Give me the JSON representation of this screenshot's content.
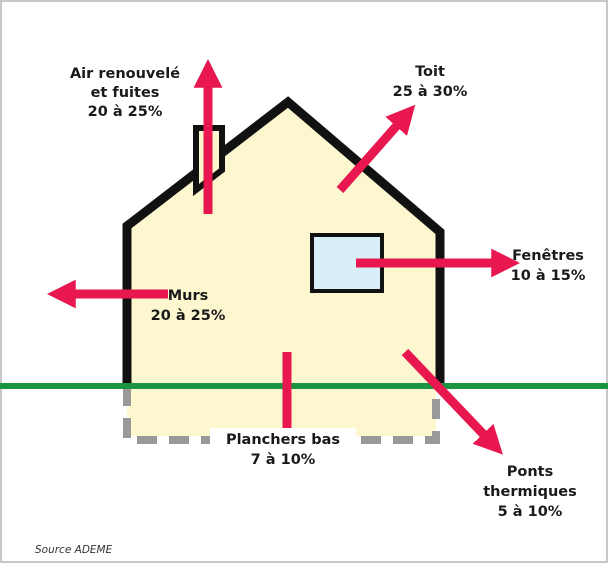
{
  "labels": [
    {
      "lines": [
        "Air renouvelé",
        "et fuites",
        "20 à 25%"
      ]
    },
    {
      "lines": [
        "Toit",
        "25 à 30%"
      ]
    },
    {
      "lines": [
        "Fenêtres",
        "10 à 15%"
      ]
    },
    {
      "lines": [
        "Murs",
        "20 à 25%"
      ]
    },
    {
      "lines": [
        "Planchers bas",
        "7 à 10%"
      ]
    },
    {
      "lines": [
        "Ponts",
        "thermiques",
        "5 à 10%"
      ]
    }
  ],
  "source": "Source ADEME"
}
